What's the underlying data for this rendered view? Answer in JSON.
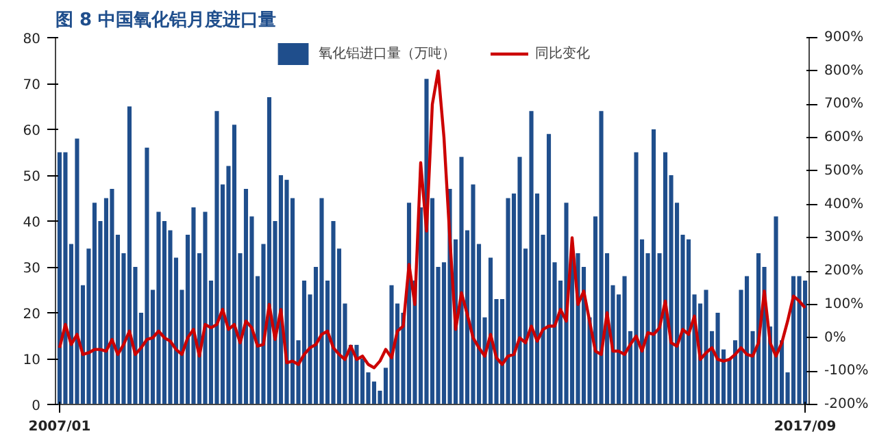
{
  "chart_data": {
    "type": "bar",
    "title": "图 8    中国氧化铝月度进口量",
    "categories": [
      "2007/01",
      null,
      null,
      null,
      null,
      null,
      null,
      null,
      null,
      null,
      null,
      null,
      null,
      null,
      null,
      null,
      null,
      null,
      null,
      null,
      null,
      null,
      null,
      null,
      null,
      null,
      null,
      null,
      null,
      null,
      null,
      null,
      null,
      null,
      null,
      null,
      null,
      null,
      null,
      null,
      null,
      null,
      null,
      null,
      null,
      null,
      null,
      null,
      null,
      null,
      null,
      null,
      null,
      null,
      null,
      null,
      null,
      null,
      null,
      null,
      null,
      null,
      null,
      null,
      null,
      null,
      null,
      null,
      null,
      null,
      null,
      null,
      null,
      null,
      null,
      null,
      null,
      null,
      null,
      null,
      null,
      null,
      null,
      null,
      null,
      null,
      null,
      null,
      null,
      null,
      null,
      null,
      null,
      null,
      null,
      null,
      null,
      null,
      null,
      null,
      null,
      null,
      null,
      null,
      null,
      null,
      null,
      null,
      null,
      null,
      null,
      null,
      null,
      null,
      null,
      null,
      null,
      null,
      null,
      null,
      null,
      null,
      null,
      null,
      null,
      null,
      null,
      null,
      "2017/09"
    ],
    "series": [
      {
        "name": "氧化铝进口量（万吨）",
        "color": "#1f4e8c",
        "values": [
          55,
          55,
          35,
          58,
          26,
          34,
          44,
          40,
          45,
          47,
          37,
          33,
          65,
          30,
          20,
          56,
          25,
          42,
          40,
          38,
          32,
          25,
          37,
          43,
          33,
          42,
          27,
          64,
          48,
          52,
          61,
          33,
          47,
          41,
          28,
          35,
          67,
          40,
          50,
          49,
          45,
          14,
          27,
          24,
          30,
          45,
          27,
          40,
          34,
          22,
          13,
          13,
          10,
          7,
          5,
          3,
          8,
          26,
          22,
          20,
          44,
          27,
          43,
          71,
          45,
          30,
          31,
          47,
          36,
          54,
          38,
          48,
          35,
          19,
          32,
          23,
          23,
          45,
          46,
          54,
          34,
          64,
          46,
          37,
          59,
          31,
          27,
          44,
          33,
          33,
          30,
          19,
          41,
          64,
          33,
          26,
          24,
          28,
          16,
          55,
          36,
          33,
          60,
          33,
          55,
          50,
          44,
          37,
          36,
          24,
          22,
          25,
          16,
          20,
          12,
          10,
          14,
          25,
          28,
          16,
          33,
          30,
          17,
          41,
          14,
          7,
          28,
          28,
          27
        ]
      },
      {
        "name": "同比变化",
        "type": "line",
        "axis": "y2",
        "color": "#cc0000",
        "values": [
          -30,
          40,
          -20,
          10,
          -50,
          -45,
          -35,
          -35,
          -40,
          -5,
          -50,
          -20,
          20,
          -50,
          -30,
          -5,
          0,
          20,
          0,
          -10,
          -35,
          -50,
          0,
          25,
          -55,
          40,
          30,
          40,
          85,
          25,
          40,
          -15,
          50,
          30,
          -25,
          -20,
          100,
          -5,
          85,
          -75,
          -70,
          -80,
          -50,
          -30,
          -20,
          10,
          20,
          -30,
          -50,
          -65,
          -25,
          -65,
          -55,
          -80,
          -90,
          -70,
          -35,
          -60,
          20,
          35,
          220,
          100,
          525,
          320,
          700,
          800,
          600,
          300,
          25,
          135,
          70,
          0,
          -30,
          -55,
          10,
          -60,
          -80,
          -55,
          -50,
          0,
          -15,
          35,
          -10,
          25,
          35,
          35,
          85,
          50,
          300,
          100,
          140,
          50,
          -40,
          -50,
          75,
          -40,
          -40,
          -50,
          -20,
          5,
          -40,
          15,
          10,
          30,
          110,
          -15,
          -25,
          25,
          10,
          65,
          -65,
          -45,
          -30,
          -65,
          -70,
          -65,
          -50,
          -30,
          -50,
          -55,
          -15,
          140,
          -15,
          -55,
          -15,
          50,
          125,
          110,
          90
        ]
      }
    ],
    "ylim": [
      0,
      80
    ],
    "yticks": [
      0,
      10,
      20,
      30,
      40,
      50,
      60,
      70,
      80
    ],
    "y2lim": [
      -200,
      900
    ],
    "y2ticks": [
      {
        "value": -200,
        "label": "-200%"
      },
      {
        "value": -100,
        "label": "-100%"
      },
      {
        "value": 0,
        "label": "0%"
      },
      {
        "value": 100,
        "label": "100%"
      },
      {
        "value": 200,
        "label": "200%"
      },
      {
        "value": 300,
        "label": "300%"
      },
      {
        "value": 400,
        "label": "400%"
      },
      {
        "value": 500,
        "label": "500%"
      },
      {
        "value": 600,
        "label": "600%"
      },
      {
        "value": 700,
        "label": "700%"
      },
      {
        "value": 800,
        "label": "800%"
      },
      {
        "value": 900,
        "label": "900%"
      }
    ],
    "legend": "top",
    "grid": false
  }
}
